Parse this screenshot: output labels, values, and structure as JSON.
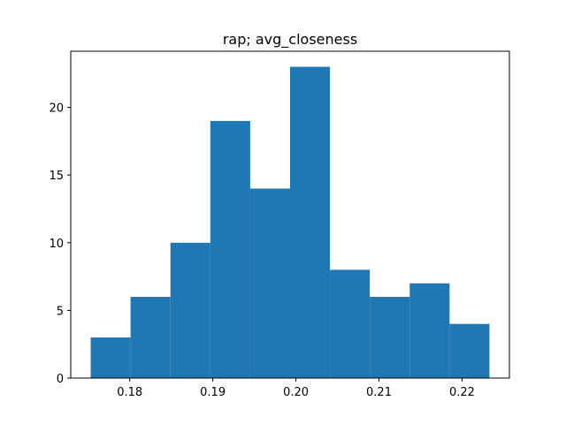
{
  "chart_data": {
    "type": "bar",
    "title": "rap; avg_closeness",
    "xlabel": "",
    "ylabel": "",
    "bin_edges": [
      0.1753,
      0.1801,
      0.1849,
      0.1897,
      0.1945,
      0.1993,
      0.2041,
      0.2089,
      0.2137,
      0.2185,
      0.2233
    ],
    "values": [
      3,
      6,
      10,
      19,
      14,
      23,
      8,
      6,
      7,
      4
    ],
    "xlim": [
      0.1729,
      0.2257
    ],
    "ylim": [
      0,
      24.15
    ],
    "x_ticks": [
      0.18,
      0.19,
      0.2,
      0.21,
      0.22
    ],
    "x_tick_labels": [
      "0.18",
      "0.19",
      "0.20",
      "0.21",
      "0.22"
    ],
    "y_ticks": [
      0,
      5,
      10,
      15,
      20
    ],
    "y_tick_labels": [
      "0",
      "5",
      "10",
      "15",
      "20"
    ],
    "bar_color": "#1f77b4",
    "grid": false,
    "legend": "none"
  }
}
